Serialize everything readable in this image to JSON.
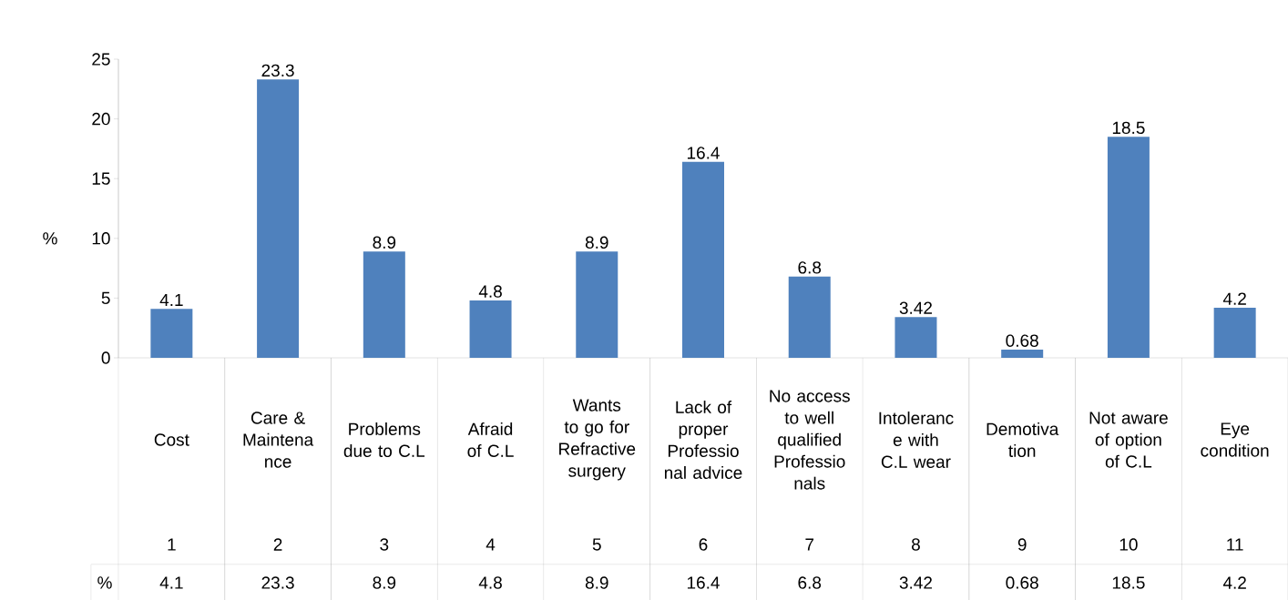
{
  "chart_data": {
    "type": "bar",
    "ylabel": "%",
    "categories": [
      "Cost",
      "Care & Maintena nce",
      "Problems due to C.L",
      "Afraid of C.L",
      "Wants to go for Refractive surgery",
      "Lack of proper Professio nal advice",
      "No access to well qualified Professio nals",
      "Intoleranc e with C.L wear",
      "Demotiva tion",
      "Not aware of option of C.L",
      "Eye condition"
    ],
    "series": [
      {
        "name": "%",
        "color": "#4f81bd",
        "values": [
          4.1,
          23.3,
          8.9,
          4.8,
          8.9,
          16.4,
          6.8,
          3.42,
          0.68,
          18.5,
          4.2
        ]
      }
    ],
    "value_labels": [
      "4.1",
      "23.3",
      "8.9",
      "4.8",
      "8.9",
      "16.4",
      "6.8",
      "3.42",
      "0.68",
      "18.5",
      "4.2"
    ],
    "annotations": [
      "1",
      "2",
      "3",
      "4",
      "5",
      "6",
      "7",
      "8",
      "9",
      "10",
      "11"
    ],
    "ylim": [
      0,
      25
    ],
    "yticks": [
      0,
      5,
      10,
      15,
      20,
      25
    ],
    "data_labels": true,
    "grid": false
  }
}
